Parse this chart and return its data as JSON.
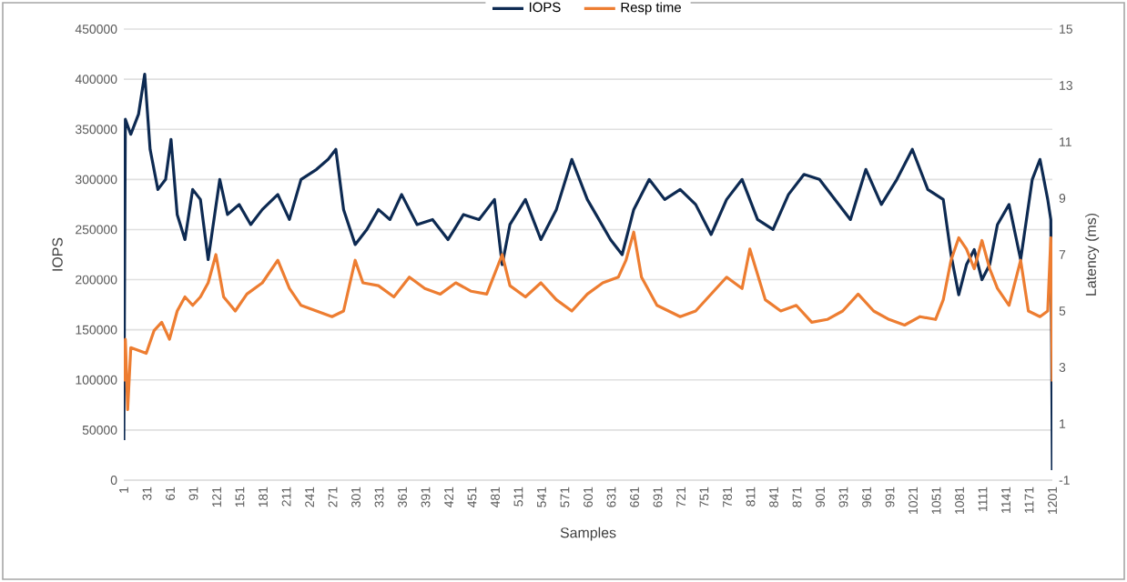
{
  "chart_data": {
    "type": "line",
    "xlabel": "Samples",
    "ylabel": "IOPS",
    "y2label": "Latency (ms)",
    "legend": "top",
    "grid": "y",
    "marker": "none",
    "line_style": "solid",
    "xlim": [
      1,
      1201
    ],
    "xticks": [
      1,
      31,
      61,
      91,
      121,
      151,
      181,
      211,
      241,
      271,
      301,
      331,
      361,
      391,
      421,
      451,
      481,
      511,
      541,
      571,
      601,
      631,
      661,
      691,
      721,
      751,
      781,
      811,
      841,
      871,
      901,
      931,
      961,
      991,
      1021,
      1051,
      1081,
      1111,
      1141,
      1171,
      1201
    ],
    "ylim": [
      0,
      450000
    ],
    "yticks": [
      0,
      50000,
      100000,
      150000,
      200000,
      250000,
      300000,
      350000,
      400000,
      450000
    ],
    "y2lim": [
      -1,
      15
    ],
    "y2ticks": [
      -1,
      1,
      3,
      5,
      7,
      9,
      11,
      13,
      15
    ],
    "series": [
      {
        "name": "IOPS",
        "color": "#0d2a52",
        "x": [
          1,
          3,
          10,
          20,
          28,
          35,
          45,
          55,
          62,
          70,
          80,
          90,
          100,
          110,
          125,
          135,
          150,
          165,
          180,
          200,
          215,
          230,
          250,
          265,
          275,
          285,
          300,
          315,
          330,
          345,
          360,
          380,
          400,
          420,
          440,
          460,
          480,
          490,
          500,
          520,
          540,
          560,
          580,
          600,
          615,
          630,
          645,
          660,
          680,
          700,
          720,
          740,
          760,
          780,
          800,
          820,
          840,
          860,
          880,
          900,
          920,
          940,
          960,
          980,
          1000,
          1020,
          1040,
          1060,
          1070,
          1080,
          1090,
          1100,
          1110,
          1120,
          1130,
          1145,
          1160,
          1175,
          1185,
          1195,
          1199,
          1201
        ],
        "values": [
          40000,
          360000,
          345000,
          365000,
          405000,
          330000,
          290000,
          300000,
          340000,
          265000,
          240000,
          290000,
          280000,
          220000,
          300000,
          265000,
          275000,
          255000,
          270000,
          285000,
          260000,
          300000,
          310000,
          320000,
          330000,
          270000,
          235000,
          250000,
          270000,
          260000,
          285000,
          255000,
          260000,
          240000,
          265000,
          260000,
          280000,
          215000,
          255000,
          280000,
          240000,
          270000,
          320000,
          280000,
          260000,
          240000,
          225000,
          270000,
          300000,
          280000,
          290000,
          275000,
          245000,
          280000,
          300000,
          260000,
          250000,
          285000,
          305000,
          300000,
          280000,
          260000,
          310000,
          275000,
          300000,
          330000,
          290000,
          280000,
          225000,
          185000,
          215000,
          230000,
          200000,
          215000,
          255000,
          275000,
          220000,
          300000,
          320000,
          280000,
          260000,
          10000
        ]
      },
      {
        "name": "Resp time",
        "color": "#ed7d31",
        "axis": "y2",
        "x": [
          1,
          3,
          6,
          10,
          20,
          30,
          40,
          50,
          60,
          70,
          80,
          90,
          100,
          110,
          120,
          130,
          145,
          160,
          180,
          200,
          215,
          230,
          250,
          270,
          285,
          300,
          310,
          330,
          350,
          370,
          390,
          410,
          430,
          450,
          470,
          490,
          500,
          520,
          540,
          560,
          580,
          600,
          620,
          640,
          650,
          660,
          670,
          690,
          720,
          740,
          760,
          780,
          800,
          810,
          830,
          850,
          870,
          890,
          910,
          930,
          950,
          970,
          990,
          1010,
          1030,
          1050,
          1060,
          1070,
          1080,
          1090,
          1100,
          1110,
          1120,
          1130,
          1145,
          1160,
          1170,
          1185,
          1195,
          1199,
          1201
        ],
        "values": [
          2.5,
          4.0,
          1.5,
          3.7,
          3.6,
          3.5,
          4.3,
          4.6,
          4.0,
          5.0,
          5.5,
          5.2,
          5.5,
          6.0,
          7.0,
          5.5,
          5.0,
          5.6,
          6.0,
          6.8,
          5.8,
          5.2,
          5.0,
          4.8,
          5.0,
          6.8,
          6.0,
          5.9,
          5.5,
          6.2,
          5.8,
          5.6,
          6.0,
          5.7,
          5.6,
          7.0,
          5.9,
          5.5,
          6.0,
          5.4,
          5.0,
          5.6,
          6.0,
          6.2,
          6.8,
          7.8,
          6.2,
          5.2,
          4.8,
          5.0,
          5.6,
          6.2,
          5.8,
          7.2,
          5.4,
          5.0,
          5.2,
          4.6,
          4.7,
          5.0,
          5.6,
          5.0,
          4.7,
          4.5,
          4.8,
          4.7,
          5.4,
          6.8,
          7.6,
          7.2,
          6.5,
          7.5,
          6.5,
          5.8,
          5.2,
          6.8,
          5.0,
          4.8,
          5.0,
          7.6,
          2.5
        ]
      }
    ]
  }
}
